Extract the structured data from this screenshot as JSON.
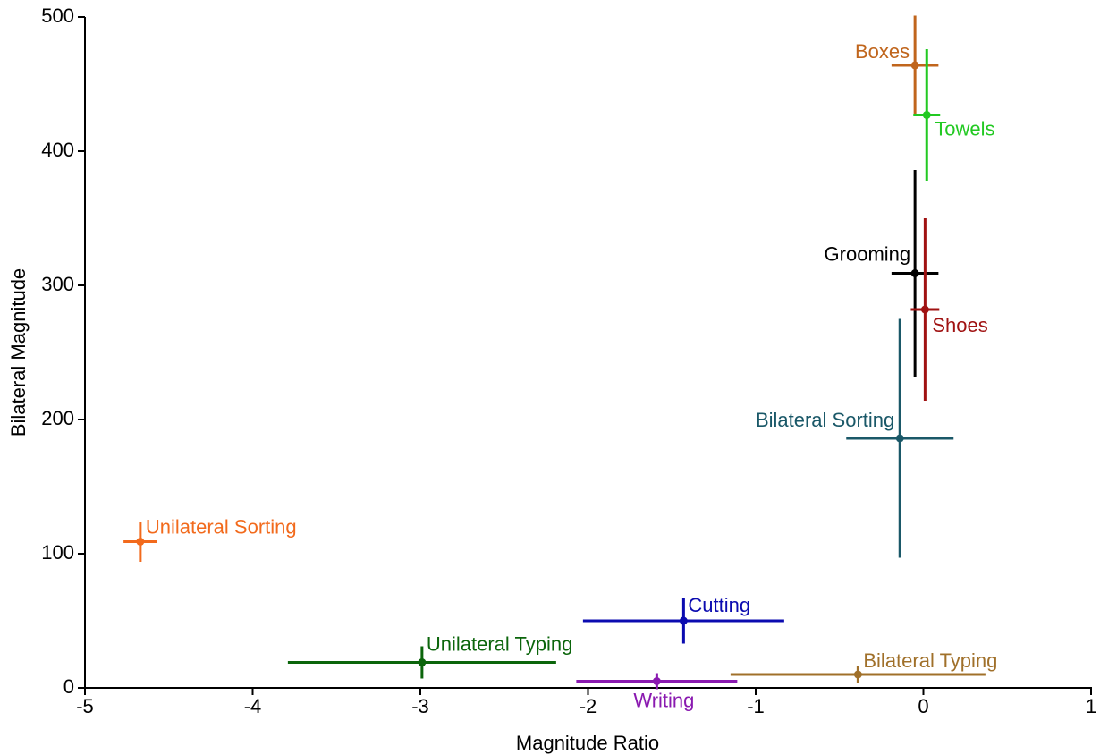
{
  "chart_data": {
    "type": "scatter",
    "xlabel": "Magnitude Ratio",
    "ylabel": "Bilateral Magnitude",
    "xlim": [
      -5,
      1
    ],
    "ylim": [
      0,
      500
    ],
    "xticks": [
      -5,
      -4,
      -3,
      -2,
      -1,
      0,
      1
    ],
    "yticks": [
      0,
      100,
      200,
      300,
      400,
      500
    ],
    "series": [
      {
        "name": "Boxes",
        "color": "#c0651c",
        "x": -0.05,
        "y": 464,
        "xerr": 0.14,
        "yerr": 37
      },
      {
        "name": "Towels",
        "color": "#22c922",
        "x": 0.02,
        "y": 427,
        "xerr": 0.08,
        "yerr": 49
      },
      {
        "name": "Grooming",
        "color": "#000000",
        "x": -0.05,
        "y": 309,
        "xerr": 0.14,
        "yerr": 77
      },
      {
        "name": "Shoes",
        "color": "#a01212",
        "x": 0.01,
        "y": 282,
        "xerr": 0.085,
        "yerr": 68
      },
      {
        "name": "Bilateral Sorting",
        "color": "#1a5868",
        "x": -0.14,
        "y": 186,
        "xerr": 0.32,
        "yerr": 89
      },
      {
        "name": "Unilateral Sorting",
        "color": "#f26a1c",
        "x": -4.67,
        "y": 109,
        "xerr": 0.1,
        "yerr": 15
      },
      {
        "name": "Cutting",
        "color": "#0b0bb0",
        "x": -1.43,
        "y": 50,
        "xerr": 0.6,
        "yerr": 17
      },
      {
        "name": "Unilateral Typing",
        "color": "#0b650b",
        "x": -2.99,
        "y": 19,
        "xerr": 0.8,
        "yerr": 12
      },
      {
        "name": "Writing",
        "color": "#8a1ab0",
        "x": -1.59,
        "y": 5,
        "xerr": 0.48,
        "yerr": 6
      },
      {
        "name": "Bilateral Typing",
        "color": "#a0702a",
        "x": -0.39,
        "y": 10,
        "xerr": 0.76,
        "yerr": 6
      }
    ]
  }
}
